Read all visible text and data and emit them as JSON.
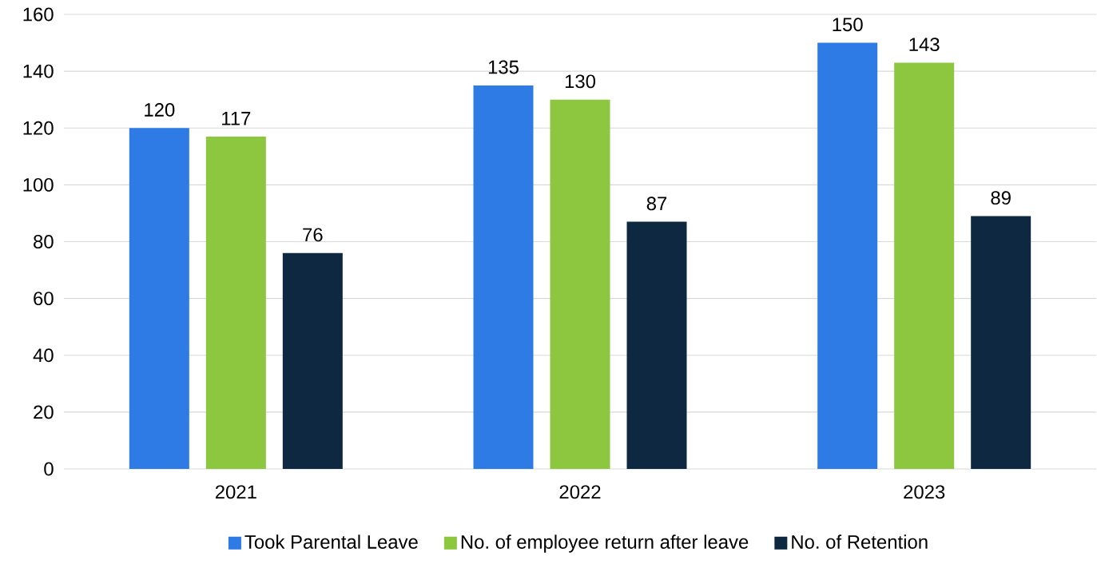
{
  "chart_data": {
    "type": "bar",
    "categories": [
      "2021",
      "2022",
      "2023"
    ],
    "series": [
      {
        "name": "Took Parental Leave",
        "color": "#2f7be6",
        "values": [
          120,
          135,
          150
        ]
      },
      {
        "name": "No. of employee return after leave",
        "color": "#8dc63f",
        "values": [
          117,
          130,
          143
        ]
      },
      {
        "name": "No. of Retention",
        "color": "#0e2841",
        "values": [
          76,
          87,
          89
        ]
      }
    ],
    "ylim": [
      0,
      160
    ],
    "yticks": [
      0,
      20,
      40,
      60,
      80,
      100,
      120,
      140,
      160
    ],
    "grid": "y",
    "legend": "bottom",
    "data_labels": true
  }
}
